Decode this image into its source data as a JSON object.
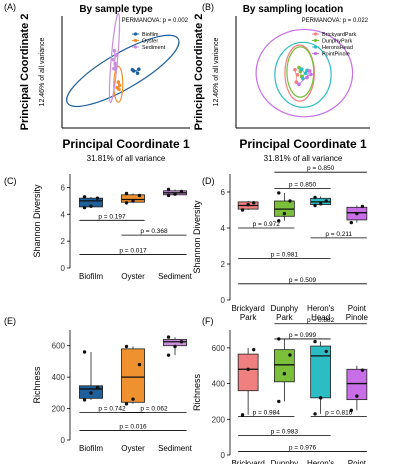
{
  "chart_data": [
    {
      "id": "A",
      "type": "scatter",
      "panel_label": "(A)",
      "title": "By sample type",
      "annotation": "PERMANOVA: p = 0.002",
      "xlabel": "Principal Coordinate 1",
      "xsub": "31.81% of all variance",
      "ylabel": "Principal Coordinate 2",
      "ysub": "12.46% of all variance",
      "xlim": [
        -1,
        1
      ],
      "ylim": [
        -1,
        1
      ],
      "grid": false,
      "legend_position": "top-right",
      "series": [
        {
          "name": "Biofilm",
          "color": "#1f5f9a",
          "points": [
            [
              0.12,
              0.02
            ],
            [
              0.2,
              0.05
            ],
            [
              0.18,
              -0.02
            ],
            [
              0.1,
              0.04
            ]
          ],
          "ellipse": {
            "cx": -0.05,
            "cy": 0.02,
            "rx": 1.0,
            "ry": 0.32,
            "rot": -30
          }
        },
        {
          "name": "Oyster",
          "color": "#f0912f",
          "points": [
            [
              -0.12,
              -0.18
            ],
            [
              -0.1,
              -0.24
            ],
            [
              -0.14,
              -0.28
            ],
            [
              -0.11,
              -0.31
            ]
          ],
          "ellipse": {
            "cx": -0.12,
            "cy": -0.22,
            "rx": 0.07,
            "ry": 0.32,
            "rot": 0
          }
        },
        {
          "name": "Sediment",
          "color": "#c98fdc",
          "points": [
            [
              -0.18,
              0.38
            ],
            [
              -0.16,
              0.3
            ],
            [
              -0.2,
              0.22
            ],
            [
              -0.17,
              0.15
            ],
            [
              -0.15,
              0.1
            ],
            [
              -0.19,
              0.06
            ]
          ],
          "ellipse": {
            "cx": -0.18,
            "cy": 0.25,
            "rx": 0.05,
            "ry": 0.8,
            "rot": 5
          }
        }
      ]
    },
    {
      "id": "B",
      "type": "scatter",
      "panel_label": "(B)",
      "title": "By sampling location",
      "annotation": "PERMANOVA: p = 0.022",
      "xlabel": "Principal Coordinate 1",
      "xsub": "31.81% of all variance",
      "ylabel": "Principal Coordinate 2",
      "ysub": "12.46% of all variance",
      "xlim": [
        -1,
        1
      ],
      "ylim": [
        -1,
        1
      ],
      "grid": false,
      "legend_position": "top-right",
      "series": [
        {
          "name": "BrickyardPark",
          "color": "#f08080",
          "points": [
            [
              -0.12,
              0.04
            ],
            [
              -0.08,
              -0.05
            ],
            [
              -0.1,
              -0.18
            ]
          ],
          "ellipse": {
            "cx": -0.05,
            "cy": -0.02,
            "rx": 0.22,
            "ry": 0.5,
            "rot": 0
          }
        },
        {
          "name": "DunphyPark",
          "color": "#7bbf3a",
          "points": [
            [
              -0.06,
              0.08
            ],
            [
              -0.04,
              0.01
            ],
            [
              -0.02,
              -0.08
            ]
          ],
          "ellipse": {
            "cx": -0.04,
            "cy": 0.0,
            "rx": 0.2,
            "ry": 0.45,
            "rot": 0
          }
        },
        {
          "name": "HeronsHead",
          "color": "#2bbcc4",
          "points": [
            [
              -0.02,
              0.05
            ],
            [
              0.04,
              -0.02
            ],
            [
              0.0,
              -0.12
            ],
            [
              0.06,
              0.03
            ]
          ],
          "ellipse": {
            "cx": 0.0,
            "cy": -0.05,
            "rx": 0.42,
            "ry": 0.58,
            "rot": 0
          }
        },
        {
          "name": "PointPinole",
          "color": "#c86fe8",
          "points": [
            [
              0.1,
              0.02
            ],
            [
              0.06,
              -0.1
            ],
            [
              -0.06,
              -0.22
            ],
            [
              0.12,
              -0.04
            ]
          ],
          "ellipse": {
            "cx": 0.02,
            "cy": -0.02,
            "rx": 0.72,
            "ry": 0.78,
            "rot": 0
          }
        }
      ]
    },
    {
      "id": "C",
      "type": "box",
      "panel_label": "(C)",
      "ylabel": "Shannon Diversity",
      "categories": [
        "Biofilm",
        "Oyster",
        "Sediment"
      ],
      "ylim": [
        0,
        7
      ],
      "yticks": [
        0,
        2,
        4,
        6
      ],
      "grid": false,
      "boxes": [
        {
          "category": "Biofilm",
          "color": "#1f5f9a",
          "min": 4.5,
          "q1": 4.55,
          "median": 5.0,
          "q3": 5.2,
          "max": 5.3,
          "points": [
            4.5,
            4.6,
            5.2,
            5.3
          ]
        },
        {
          "category": "Oyster",
          "color": "#f0912f",
          "min": 4.85,
          "q1": 4.9,
          "median": 5.1,
          "q3": 5.45,
          "max": 5.55,
          "points": [
            4.85,
            5.0,
            5.4,
            5.55
          ]
        },
        {
          "category": "Sediment",
          "color": "#c98fdc",
          "min": 5.4,
          "q1": 5.45,
          "median": 5.6,
          "q3": 5.75,
          "max": 5.85,
          "points": [
            5.4,
            5.5,
            5.7,
            5.85
          ]
        }
      ],
      "comparisons": [
        {
          "label": "p = 0.197",
          "from": 0,
          "to": 1,
          "y": 3.55
        },
        {
          "label": "p = 0.368",
          "from": 1,
          "to": 2,
          "y": 2.45
        },
        {
          "label": "p = 0.017",
          "from": 0,
          "to": 2,
          "y": 1.0
        }
      ]
    },
    {
      "id": "D",
      "type": "box",
      "panel_label": "(D)",
      "ylabel": "Shannon Diversity",
      "categories": [
        "Brickyard\nPark",
        "Dunphy\nPark",
        "Heron's\nHead",
        "Point\nPinole"
      ],
      "ylim": [
        0,
        7
      ],
      "yticks": [
        0,
        2,
        4,
        6
      ],
      "grid": false,
      "boxes": [
        {
          "category": "Brickyard\nPark",
          "color": "#f08080",
          "min": 5.0,
          "q1": 5.05,
          "median": 5.25,
          "q3": 5.45,
          "max": 5.5,
          "points": [
            5.0,
            5.3,
            5.4
          ]
        },
        {
          "category": "Dunphy\nPark",
          "color": "#7bbf3a",
          "min": 4.4,
          "q1": 4.65,
          "median": 5.05,
          "q3": 5.5,
          "max": 5.95,
          "points": [
            4.4,
            4.8,
            5.5,
            5.95
          ]
        },
        {
          "category": "Heron's\nHead",
          "color": "#2bbcc4",
          "min": 5.25,
          "q1": 5.3,
          "median": 5.45,
          "q3": 5.65,
          "max": 5.75,
          "points": [
            5.25,
            5.35,
            5.5,
            5.7
          ]
        },
        {
          "category": "Point\nPinole",
          "color": "#c86fe8",
          "min": 4.3,
          "q1": 4.45,
          "median": 4.85,
          "q3": 5.15,
          "max": 5.25,
          "points": [
            4.3,
            4.8,
            5.2
          ]
        }
      ],
      "comparisons": [
        {
          "label": "p = 0.850",
          "from": 1,
          "to": 3,
          "y": 7.1
        },
        {
          "label": "p = 0.850",
          "from": 1,
          "to": 2,
          "y": 6.2
        },
        {
          "label": "p = 0.972",
          "from": 0,
          "to": 1,
          "y": 4.0
        },
        {
          "label": "p = 0.211",
          "from": 2,
          "to": 3,
          "y": 3.45
        },
        {
          "label": "p = 0.981",
          "from": 0,
          "to": 2,
          "y": 2.3
        },
        {
          "label": "p = 0.509",
          "from": 0,
          "to": 3,
          "y": 0.9
        }
      ]
    },
    {
      "id": "E",
      "type": "box",
      "panel_label": "(E)",
      "ylabel": "Richness",
      "categories": [
        "Biofilm",
        "Oyster",
        "Sediment"
      ],
      "ylim": [
        0,
        700
      ],
      "yticks": [
        0,
        200,
        400,
        600
      ],
      "grid": false,
      "boxes": [
        {
          "category": "Biofilm",
          "color": "#1f5f9a",
          "min": 255,
          "q1": 265,
          "median": 325,
          "q3": 345,
          "max": 560,
          "points": [
            255,
            300,
            335,
            560
          ]
        },
        {
          "category": "Oyster",
          "color": "#f0912f",
          "min": 230,
          "q1": 240,
          "median": 400,
          "q3": 580,
          "max": 595,
          "points": [
            230,
            260,
            480,
            595
          ]
        },
        {
          "category": "Sediment",
          "color": "#c98fdc",
          "min": 540,
          "q1": 600,
          "median": 625,
          "q3": 640,
          "max": 655,
          "points": [
            540,
            595,
            625,
            655
          ]
        }
      ],
      "comparisons": [
        {
          "label": "p = 0.742",
          "from": 0,
          "to": 1,
          "y": 175
        },
        {
          "label": "p = 0.062",
          "from": 1,
          "to": 2,
          "y": 175
        },
        {
          "label": "p = 0.016",
          "from": 0,
          "to": 2,
          "y": 60
        }
      ]
    },
    {
      "id": "F",
      "type": "box",
      "panel_label": "(F)",
      "ylabel": "Richness",
      "categories": [
        "Brickyard\nPark",
        "Dunphy\nPark",
        "Heron's\nHead",
        "Point\nPinole"
      ],
      "ylim": [
        0,
        700
      ],
      "yticks": [
        0,
        200,
        400,
        600
      ],
      "grid": false,
      "boxes": [
        {
          "category": "Brickyard\nPark",
          "color": "#f08080",
          "min": 225,
          "q1": 360,
          "median": 480,
          "q3": 565,
          "max": 600,
          "points": [
            225,
            480,
            590
          ]
        },
        {
          "category": "Dunphy\nPark",
          "color": "#7bbf3a",
          "min": 300,
          "q1": 410,
          "median": 505,
          "q3": 590,
          "max": 650,
          "points": [
            300,
            455,
            560,
            650
          ]
        },
        {
          "category": "Heron's\nHead",
          "color": "#2bbcc4",
          "min": 230,
          "q1": 320,
          "median": 555,
          "q3": 610,
          "max": 635,
          "points": [
            230,
            320,
            580,
            635
          ]
        },
        {
          "category": "Point\nPinole",
          "color": "#c86fe8",
          "min": 250,
          "q1": 310,
          "median": 400,
          "q3": 480,
          "max": 500,
          "points": [
            250,
            330,
            475
          ]
        }
      ],
      "comparisons": [
        {
          "label": "p = 0.882",
          "from": 1,
          "to": 3,
          "y": 735
        },
        {
          "label": "p = 0.999",
          "from": 1,
          "to": 2,
          "y": 650
        },
        {
          "label": "p = 0.984",
          "from": 0,
          "to": 1,
          "y": 215
        },
        {
          "label": "p = 0.816",
          "from": 2,
          "to": 3,
          "y": 215
        },
        {
          "label": "p = 0.983",
          "from": 0,
          "to": 2,
          "y": 110
        },
        {
          "label": "p = 0.976",
          "from": 0,
          "to": 3,
          "y": 20
        }
      ]
    }
  ]
}
